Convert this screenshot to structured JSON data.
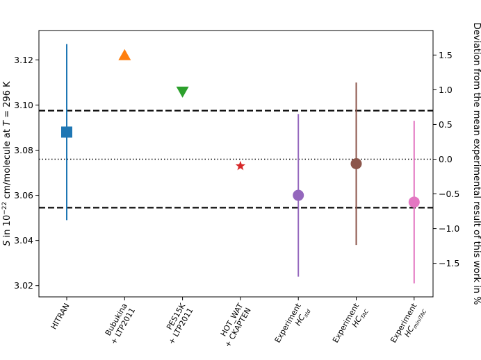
{
  "chart_data": {
    "type": "scatter",
    "subtype": "point-with-error-bars",
    "ylabel_parts": {
      "s_symbol": "S",
      "in_text": " in 10",
      "exponent": "−22",
      "units_text": " cm/molecule at ",
      "t_symbol": "T",
      "temp_text": " = 296 K"
    },
    "y2label": "Deviation from the mean experimental result of this work in %",
    "ylim": [
      3.015,
      3.133
    ],
    "yticks": [
      "3.02",
      "3.04",
      "3.06",
      "3.08",
      "3.10",
      "3.12"
    ],
    "ytick_values": [
      3.02,
      3.04,
      3.06,
      3.08,
      3.1,
      3.12
    ],
    "y2ticks": [
      "−1.5",
      "−1.0",
      "−0.5",
      "0.0",
      "0.5",
      "1.0",
      "1.5"
    ],
    "y2tick_values": [
      -1.5,
      -1.0,
      -0.5,
      0.0,
      0.5,
      1.0,
      1.5
    ],
    "reference_mean": 3.076,
    "reference_lines": [
      {
        "name": "upper-bound",
        "value": 3.0975,
        "style": "dashed"
      },
      {
        "name": "mean",
        "value": 3.076,
        "style": "dotted"
      },
      {
        "name": "lower-bound",
        "value": 3.0545,
        "style": "dashed"
      }
    ],
    "points": [
      {
        "label_lines": [
          "HITRAN"
        ],
        "value": 3.088,
        "err_low": 3.049,
        "err_high": 3.127,
        "marker": "square",
        "color": "#1f77b4"
      },
      {
        "label_lines": [
          "Bubukina",
          "+ LTP2011"
        ],
        "value": 3.122,
        "marker": "triangle-up",
        "color": "#ff7f0e"
      },
      {
        "label_lines": [
          "PES15K",
          "+ LTP2011"
        ],
        "value": 3.106,
        "marker": "triangle-down",
        "color": "#2ca02c"
      },
      {
        "label_lines": [
          "HOT_WAT",
          "+ CKAPTEN"
        ],
        "value": 3.073,
        "marker": "star",
        "color": "#d62728"
      },
      {
        "label_lines": [
          "Experiment",
          "HC"
        ],
        "sub": "std",
        "value": 3.06,
        "err_low": 3.024,
        "err_high": 3.096,
        "marker": "circle",
        "color": "#9467bd"
      },
      {
        "label_lines": [
          "Experiment",
          "HC"
        ],
        "sub": "TAC",
        "value": 3.074,
        "err_low": 3.038,
        "err_high": 3.11,
        "marker": "circle",
        "color": "#8c564b"
      },
      {
        "label_lines": [
          "Experiment",
          "HC"
        ],
        "sub": "miniTAC",
        "value": 3.057,
        "err_low": 3.021,
        "err_high": 3.093,
        "marker": "circle",
        "color": "#e377c2"
      }
    ]
  }
}
